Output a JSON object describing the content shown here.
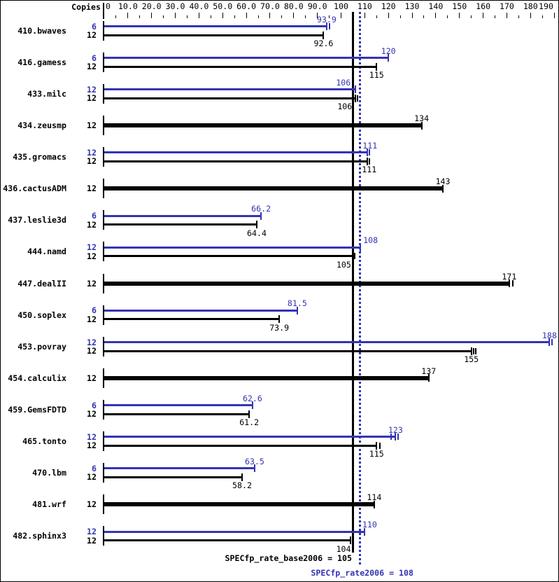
{
  "header": {
    "copies_label": "Copies"
  },
  "colors": {
    "peak": "#3434b2",
    "base": "#000000",
    "background": "#ffffff",
    "border": "#000000"
  },
  "chart_data": {
    "type": "bar",
    "orientation": "horizontal",
    "axis": {
      "position": "top",
      "xlim": [
        0,
        190
      ],
      "minor_step": 5,
      "major_step": 10,
      "tick_values": [
        0,
        10,
        20,
        30,
        40,
        50,
        60,
        70,
        80,
        90,
        100,
        110,
        120,
        130,
        140,
        150,
        160,
        170,
        180,
        190
      ],
      "tick_labels": [
        "0",
        "10.0",
        "20.0",
        "30.0",
        "40.0",
        "50.0",
        "60.0",
        "70.0",
        "80.0",
        "90.0",
        "100",
        "110",
        "120",
        "130",
        "140",
        "150",
        "160",
        "170",
        "180",
        "190"
      ]
    },
    "series_info": [
      {
        "id": "peak",
        "color_key": "peak",
        "bar_style": "thin"
      },
      {
        "id": "base",
        "color_key": "base",
        "bar_style": "thin-or-thick"
      }
    ],
    "reference_lines": {
      "base": {
        "value": 105,
        "label": "SPECfp_rate_base2006 = 105",
        "style": "solid",
        "color_key": "base"
      },
      "peak": {
        "value": 108,
        "label": "SPECfp_rate2006 = 108",
        "style": "dotted",
        "color_key": "peak"
      }
    },
    "benchmarks": [
      {
        "name": "410.bwaves",
        "bars": [
          {
            "series": "peak",
            "copies": "6",
            "value": 93.9,
            "label": "93.9",
            "extra_marks": [
              95.1
            ]
          },
          {
            "series": "base",
            "copies": "12",
            "value": 92.6,
            "label": "92.6",
            "extra_marks": []
          }
        ]
      },
      {
        "name": "416.gamess",
        "bars": [
          {
            "series": "peak",
            "copies": "6",
            "value": 120,
            "label": "120",
            "extra_marks": []
          },
          {
            "series": "base",
            "copies": "12",
            "value": 115,
            "label": "115",
            "extra_marks": []
          }
        ]
      },
      {
        "name": "433.milc",
        "bars": [
          {
            "series": "peak",
            "copies": "12",
            "value": 106,
            "label": "106",
            "label_dx": -17,
            "extra_marks": []
          },
          {
            "series": "base",
            "copies": "12",
            "value": 106,
            "label": "106",
            "label_dx": -15,
            "extra_marks": [
              106.9
            ]
          }
        ]
      },
      {
        "name": "434.zeusmp",
        "bars": [
          {
            "series": "base",
            "copies": "12",
            "value": 134,
            "label": "134",
            "thick": true,
            "extra_marks": []
          }
        ]
      },
      {
        "name": "435.gromacs",
        "bars": [
          {
            "series": "peak",
            "copies": "12",
            "value": 111,
            "label": "111",
            "label_dx": 4,
            "extra_marks": [
              111.9
            ]
          },
          {
            "series": "base",
            "copies": "12",
            "value": 111,
            "label": "111",
            "label_dx": 3,
            "extra_marks": [
              111.9
            ]
          }
        ]
      },
      {
        "name": "436.cactusADM",
        "bars": [
          {
            "series": "base",
            "copies": "12",
            "value": 143,
            "label": "143",
            "thick": true,
            "extra_marks": []
          }
        ]
      },
      {
        "name": "437.leslie3d",
        "bars": [
          {
            "series": "peak",
            "copies": "6",
            "value": 66.2,
            "label": "66.2",
            "extra_marks": []
          },
          {
            "series": "base",
            "copies": "12",
            "value": 64.4,
            "label": "64.4",
            "extra_marks": []
          }
        ]
      },
      {
        "name": "444.namd",
        "bars": [
          {
            "series": "peak",
            "copies": "12",
            "value": 108,
            "label": "108",
            "label_dx": 15,
            "extra_marks": []
          },
          {
            "series": "base",
            "copies": "12",
            "value": 105,
            "label": "105",
            "label_dx": -13,
            "extra_marks": [
              105.9
            ]
          }
        ]
      },
      {
        "name": "447.dealII",
        "bars": [
          {
            "series": "base",
            "copies": "12",
            "value": 171,
            "label": "171",
            "thick": true,
            "extra_marks": [
              172.5
            ]
          }
        ]
      },
      {
        "name": "450.soplex",
        "bars": [
          {
            "series": "peak",
            "copies": "6",
            "value": 81.5,
            "label": "81.5",
            "extra_marks": []
          },
          {
            "series": "base",
            "copies": "12",
            "value": 73.9,
            "label": "73.9",
            "extra_marks": []
          }
        ]
      },
      {
        "name": "453.povray",
        "bars": [
          {
            "series": "peak",
            "copies": "12",
            "value": 188,
            "label": "188",
            "extra_marks": [
              189.2
            ]
          },
          {
            "series": "base",
            "copies": "12",
            "value": 155,
            "label": "155",
            "extra_marks": [
              156,
              157
            ]
          }
        ]
      },
      {
        "name": "454.calculix",
        "bars": [
          {
            "series": "base",
            "copies": "12",
            "value": 137,
            "label": "137",
            "thick": true,
            "extra_marks": []
          }
        ]
      },
      {
        "name": "459.GemsFDTD",
        "bars": [
          {
            "series": "peak",
            "copies": "6",
            "value": 62.6,
            "label": "62.6",
            "extra_marks": []
          },
          {
            "series": "base",
            "copies": "12",
            "value": 61.2,
            "label": "61.2",
            "extra_marks": []
          }
        ]
      },
      {
        "name": "465.tonto",
        "bars": [
          {
            "series": "peak",
            "copies": "12",
            "value": 123,
            "label": "123",
            "extra_marks": [
              121,
              124.1
            ]
          },
          {
            "series": "base",
            "copies": "12",
            "value": 115,
            "label": "115",
            "extra_marks": [
              116.3
            ]
          }
        ]
      },
      {
        "name": "470.lbm",
        "bars": [
          {
            "series": "peak",
            "copies": "6",
            "value": 63.5,
            "label": "63.5",
            "extra_marks": []
          },
          {
            "series": "base",
            "copies": "12",
            "value": 58.2,
            "label": "58.2",
            "extra_marks": []
          }
        ]
      },
      {
        "name": "481.wrf",
        "bars": [
          {
            "series": "base",
            "copies": "12",
            "value": 114,
            "label": "114",
            "thick": true,
            "extra_marks": []
          }
        ]
      },
      {
        "name": "482.sphinx3",
        "bars": [
          {
            "series": "peak",
            "copies": "12",
            "value": 110,
            "label": "110",
            "label_dx": 7,
            "extra_marks": []
          },
          {
            "series": "base",
            "copies": "12",
            "value": 104,
            "label": "104",
            "label_dx": -10,
            "extra_marks": [
              104.9
            ]
          }
        ]
      }
    ]
  }
}
